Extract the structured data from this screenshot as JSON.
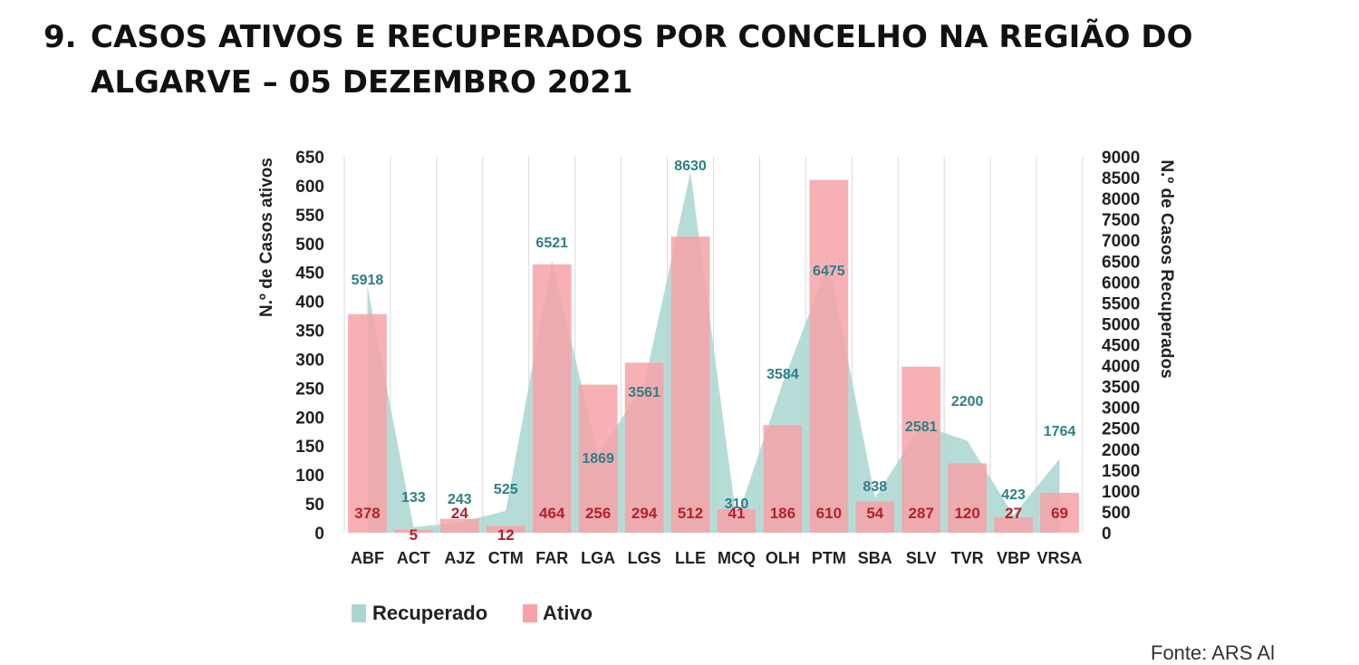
{
  "heading": {
    "number": "9.",
    "title": "CASOS ATIVOS E RECUPERADOS POR CONCELHO NA REGIÃO DO ALGARVE – 05 DEZEMBRO 2021"
  },
  "source": "Fonte: ARS Al",
  "chart_data": {
    "type": "bar",
    "title": "",
    "categories": [
      "ABF",
      "ACT",
      "AJZ",
      "CTM",
      "FAR",
      "LGA",
      "LGS",
      "LLE",
      "MCQ",
      "OLH",
      "PTM",
      "SBA",
      "SLV",
      "TVR",
      "VBP",
      "VRSA"
    ],
    "series": [
      {
        "name": "Recuperado",
        "type": "area",
        "axis": "right",
        "color": "#a9d6d1",
        "label_color": "#2f7f86",
        "values": [
          5918,
          133,
          243,
          525,
          6521,
          1869,
          3561,
          8630,
          310,
          3584,
          6475,
          838,
          2581,
          2200,
          423,
          1764
        ]
      },
      {
        "name": "Ativo",
        "type": "bar",
        "axis": "left",
        "color": "#f6a3a8",
        "label_color": "#b5202b",
        "values": [
          378,
          5,
          24,
          12,
          464,
          256,
          294,
          512,
          41,
          186,
          610,
          54,
          287,
          120,
          27,
          69
        ]
      }
    ],
    "ylabel": "N.º de Casos ativos",
    "ylabel_right": "N.º de Casos Recuperados",
    "ylim": [
      0,
      650
    ],
    "yticks": [
      0,
      50,
      100,
      150,
      200,
      250,
      300,
      350,
      400,
      450,
      500,
      550,
      600,
      650
    ],
    "ylim_right": [
      0,
      9000
    ],
    "yticks_right": [
      0,
      500,
      1000,
      1500,
      2000,
      2500,
      3000,
      3500,
      4000,
      4500,
      5000,
      5500,
      6000,
      6500,
      7000,
      7500,
      8000,
      8500,
      9000
    ],
    "legend": [
      "Recuperado",
      "Ativo"
    ],
    "legend_position": "bottom-left",
    "grid": "vertical"
  }
}
